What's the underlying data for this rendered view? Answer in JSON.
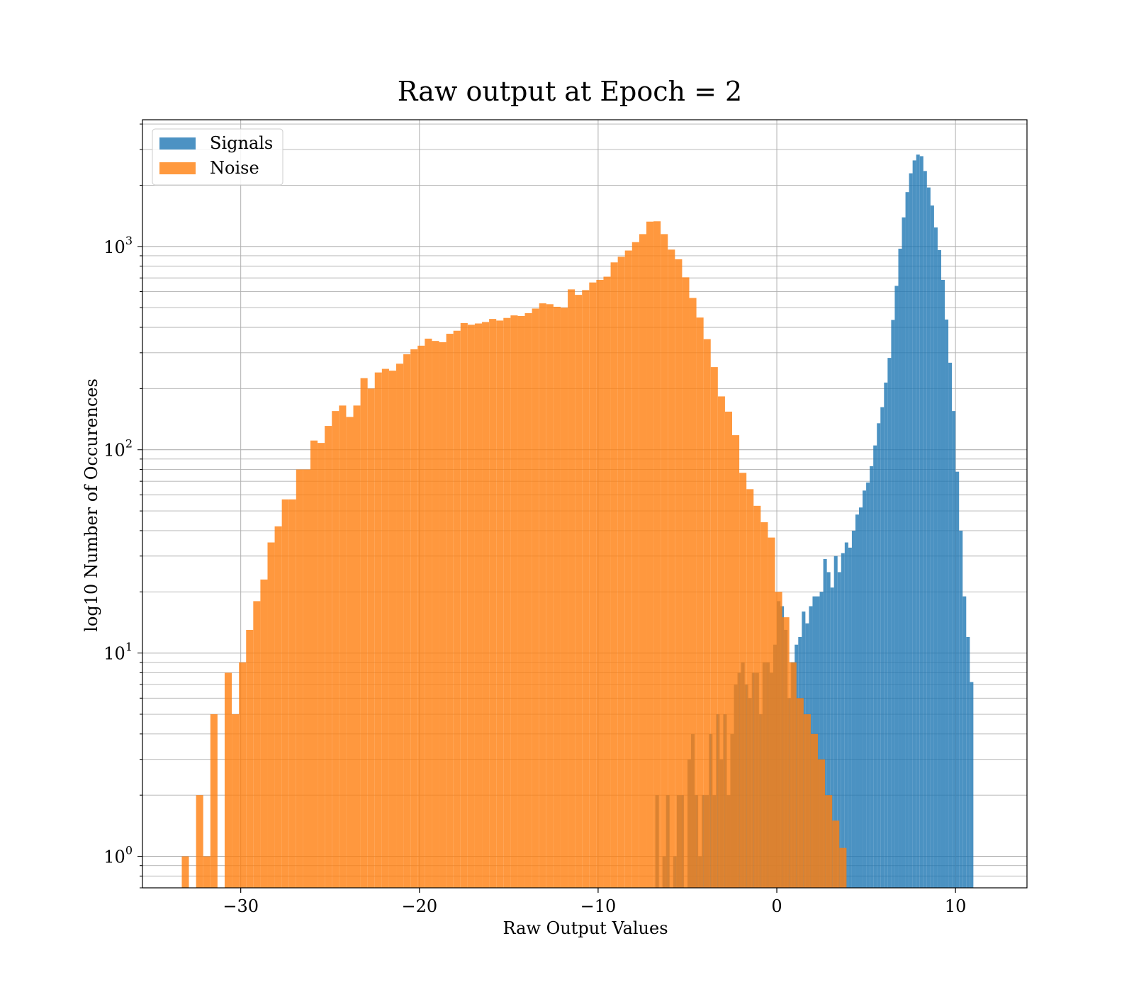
{
  "chart_data": {
    "type": "bar",
    "subtype": "histogram",
    "title": "Raw output at Epoch = 2",
    "xlabel": "Raw Output Values",
    "ylabel": "log10 Number of Occurences",
    "xlim": [
      -35.5,
      14
    ],
    "ylim": [
      0.7,
      4200
    ],
    "y_scale": "log",
    "x_ticks": [
      {
        "value": -30,
        "label": "−30"
      },
      {
        "value": -20,
        "label": "−20"
      },
      {
        "value": -10,
        "label": "−10"
      },
      {
        "value": 0,
        "label": "0"
      },
      {
        "value": 10,
        "label": "10"
      }
    ],
    "y_ticks": [
      {
        "value": 1,
        "base": "10",
        "exp": "0"
      },
      {
        "value": 10,
        "base": "10",
        "exp": "1"
      },
      {
        "value": 100,
        "base": "10",
        "exp": "2"
      },
      {
        "value": 1000,
        "base": "10",
        "exp": "3"
      }
    ],
    "grid": true,
    "legend_position": "top-left",
    "series": [
      {
        "name": "Signals",
        "color": "#1f77b4",
        "opacity": 0.8,
        "bins": [
          [
            -6.8,
            -6.6,
            2
          ],
          [
            -6.4,
            -6.2,
            1
          ],
          [
            -6.2,
            -6.0,
            2
          ],
          [
            -5.8,
            -5.6,
            1
          ],
          [
            -5.6,
            -5.4,
            2
          ],
          [
            -5.4,
            -5.2,
            2
          ],
          [
            -5.0,
            -4.8,
            3
          ],
          [
            -4.8,
            -4.6,
            4
          ],
          [
            -4.6,
            -4.4,
            2
          ],
          [
            -4.4,
            -4.2,
            1
          ],
          [
            -4.2,
            -3.8,
            2
          ],
          [
            -3.8,
            -3.6,
            4
          ],
          [
            -3.6,
            -3.4,
            2
          ],
          [
            -3.4,
            -3.2,
            5
          ],
          [
            -3.2,
            -3.0,
            3
          ],
          [
            -3.0,
            -2.8,
            5
          ],
          [
            -2.8,
            -2.6,
            2
          ],
          [
            -2.6,
            -2.4,
            4
          ],
          [
            -2.4,
            -2.2,
            7
          ],
          [
            -2.2,
            -2.0,
            8
          ],
          [
            -2.0,
            -1.8,
            9
          ],
          [
            -1.8,
            -1.6,
            7
          ],
          [
            -1.6,
            -1.4,
            6
          ],
          [
            -1.4,
            -1.2,
            8
          ],
          [
            -1.2,
            -1.0,
            8
          ],
          [
            -1.0,
            -0.8,
            5
          ],
          [
            -0.8,
            -0.6,
            9
          ],
          [
            -0.6,
            -0.4,
            9
          ],
          [
            -0.4,
            -0.2,
            8
          ],
          [
            -0.2,
            0.0,
            11
          ],
          [
            0.0,
            0.2,
            18
          ],
          [
            0.2,
            0.4,
            17
          ],
          [
            0.4,
            0.6,
            13
          ],
          [
            0.6,
            0.8,
            6
          ],
          [
            0.8,
            1.0,
            9
          ],
          [
            1.0,
            1.2,
            11
          ],
          [
            1.2,
            1.4,
            12
          ],
          [
            1.4,
            1.6,
            16
          ],
          [
            1.6,
            1.8,
            14
          ],
          [
            1.8,
            2.0,
            17
          ],
          [
            2.0,
            2.2,
            19
          ],
          [
            2.2,
            2.4,
            19
          ],
          [
            2.4,
            2.6,
            20
          ],
          [
            2.6,
            2.8,
            29
          ],
          [
            2.8,
            3.0,
            25
          ],
          [
            3.0,
            3.2,
            21
          ],
          [
            3.2,
            3.4,
            30
          ],
          [
            3.4,
            3.6,
            25
          ],
          [
            3.6,
            3.8,
            31
          ],
          [
            3.8,
            4.0,
            35
          ],
          [
            4.0,
            4.2,
            33
          ],
          [
            4.2,
            4.4,
            40
          ],
          [
            4.4,
            4.6,
            48
          ],
          [
            4.6,
            4.8,
            52
          ],
          [
            4.8,
            5.0,
            63
          ],
          [
            5.0,
            5.2,
            69
          ],
          [
            5.2,
            5.4,
            83
          ],
          [
            5.4,
            5.6,
            105
          ],
          [
            5.6,
            5.8,
            135
          ],
          [
            5.8,
            6.0,
            162
          ],
          [
            6.0,
            6.2,
            214
          ],
          [
            6.2,
            6.4,
            283
          ],
          [
            6.4,
            6.6,
            435
          ],
          [
            6.6,
            6.8,
            640
          ],
          [
            6.8,
            7.0,
            975
          ],
          [
            7.0,
            7.2,
            1390
          ],
          [
            7.2,
            7.4,
            1850
          ],
          [
            7.4,
            7.6,
            2290
          ],
          [
            7.6,
            7.8,
            2650
          ],
          [
            7.8,
            8.0,
            2830
          ],
          [
            8.0,
            8.2,
            2780
          ],
          [
            8.2,
            8.4,
            2350
          ],
          [
            8.4,
            8.6,
            1950
          ],
          [
            8.6,
            8.8,
            1590
          ],
          [
            8.8,
            9.0,
            1240
          ],
          [
            9.0,
            9.2,
            960
          ],
          [
            9.2,
            9.4,
            685
          ],
          [
            9.4,
            9.6,
            437
          ],
          [
            9.6,
            9.8,
            268
          ],
          [
            9.8,
            10.0,
            155
          ],
          [
            10.0,
            10.2,
            78
          ],
          [
            10.2,
            10.4,
            40
          ],
          [
            10.4,
            10.6,
            19
          ],
          [
            10.6,
            10.8,
            12
          ],
          [
            10.8,
            11.0,
            7.2
          ]
        ]
      },
      {
        "name": "Noise",
        "color": "#ff7f0e",
        "opacity": 0.8,
        "bins": [
          [
            -33.3,
            -32.9,
            1
          ],
          [
            -32.5,
            -32.1,
            2
          ],
          [
            -32.1,
            -31.7,
            1
          ],
          [
            -31.7,
            -31.3,
            5
          ],
          [
            -30.9,
            -30.5,
            8
          ],
          [
            -30.5,
            -30.1,
            5
          ],
          [
            -30.1,
            -29.7,
            9
          ],
          [
            -29.7,
            -29.3,
            13
          ],
          [
            -29.3,
            -28.9,
            18
          ],
          [
            -28.9,
            -28.5,
            23
          ],
          [
            -28.5,
            -28.1,
            35
          ],
          [
            -28.1,
            -27.7,
            42
          ],
          [
            -27.7,
            -27.3,
            57
          ],
          [
            -27.3,
            -26.9,
            57
          ],
          [
            -26.9,
            -26.5,
            80
          ],
          [
            -26.5,
            -26.1,
            80
          ],
          [
            -26.1,
            -25.7,
            111
          ],
          [
            -25.7,
            -25.3,
            108
          ],
          [
            -25.3,
            -24.9,
            131
          ],
          [
            -24.9,
            -24.5,
            155
          ],
          [
            -24.5,
            -24.1,
            165
          ],
          [
            -24.1,
            -23.7,
            145
          ],
          [
            -23.7,
            -23.3,
            165
          ],
          [
            -23.3,
            -22.9,
            225
          ],
          [
            -22.9,
            -22.5,
            200
          ],
          [
            -22.5,
            -22.1,
            240
          ],
          [
            -22.1,
            -21.7,
            250
          ],
          [
            -21.7,
            -21.3,
            245
          ],
          [
            -21.3,
            -20.9,
            265
          ],
          [
            -20.9,
            -20.5,
            295
          ],
          [
            -20.5,
            -20.1,
            312
          ],
          [
            -20.1,
            -19.7,
            325
          ],
          [
            -19.7,
            -19.3,
            352
          ],
          [
            -19.3,
            -18.9,
            343
          ],
          [
            -18.9,
            -18.5,
            338
          ],
          [
            -18.5,
            -18.1,
            372
          ],
          [
            -18.1,
            -17.7,
            385
          ],
          [
            -17.7,
            -17.3,
            420
          ],
          [
            -17.3,
            -16.9,
            412
          ],
          [
            -16.9,
            -16.5,
            418
          ],
          [
            -16.5,
            -16.1,
            425
          ],
          [
            -16.1,
            -15.7,
            440
          ],
          [
            -15.7,
            -15.3,
            432
          ],
          [
            -15.3,
            -14.9,
            445
          ],
          [
            -14.9,
            -14.5,
            458
          ],
          [
            -14.5,
            -14.1,
            455
          ],
          [
            -14.1,
            -13.7,
            470
          ],
          [
            -13.7,
            -13.3,
            495
          ],
          [
            -13.3,
            -12.9,
            525
          ],
          [
            -12.9,
            -12.5,
            520
          ],
          [
            -12.5,
            -12.1,
            505
          ],
          [
            -12.1,
            -11.7,
            500
          ],
          [
            -11.7,
            -11.3,
            615
          ],
          [
            -11.3,
            -10.9,
            578
          ],
          [
            -10.9,
            -10.5,
            610
          ],
          [
            -10.5,
            -10.1,
            665
          ],
          [
            -10.1,
            -9.7,
            685
          ],
          [
            -9.7,
            -9.3,
            710
          ],
          [
            -9.3,
            -8.9,
            835
          ],
          [
            -8.9,
            -8.5,
            890
          ],
          [
            -8.5,
            -8.1,
            955
          ],
          [
            -8.1,
            -7.7,
            1050
          ],
          [
            -7.7,
            -7.3,
            1150
          ],
          [
            -7.3,
            -6.9,
            1325
          ],
          [
            -6.9,
            -6.5,
            1330
          ],
          [
            -6.5,
            -6.1,
            1150
          ],
          [
            -6.1,
            -5.7,
            965
          ],
          [
            -5.7,
            -5.3,
            865
          ],
          [
            -5.3,
            -4.9,
            705
          ],
          [
            -4.9,
            -4.5,
            558
          ],
          [
            -4.5,
            -4.1,
            447
          ],
          [
            -4.1,
            -3.7,
            350
          ],
          [
            -3.7,
            -3.3,
            255
          ],
          [
            -3.3,
            -2.9,
            183
          ],
          [
            -2.9,
            -2.5,
            154
          ],
          [
            -2.5,
            -2.1,
            118
          ],
          [
            -2.1,
            -1.7,
            77
          ],
          [
            -1.7,
            -1.3,
            64
          ],
          [
            -1.3,
            -0.9,
            53
          ],
          [
            -0.9,
            -0.5,
            44
          ],
          [
            -0.5,
            -0.1,
            37
          ],
          [
            -0.1,
            0.3,
            20
          ],
          [
            0.3,
            0.7,
            15
          ],
          [
            0.7,
            1.1,
            9
          ],
          [
            1.1,
            1.5,
            6
          ],
          [
            1.5,
            1.9,
            5
          ],
          [
            1.9,
            2.3,
            4
          ],
          [
            2.3,
            2.7,
            3
          ],
          [
            2.7,
            3.1,
            2
          ],
          [
            3.1,
            3.5,
            1.5
          ],
          [
            3.5,
            3.9,
            1.1
          ]
        ]
      }
    ]
  }
}
